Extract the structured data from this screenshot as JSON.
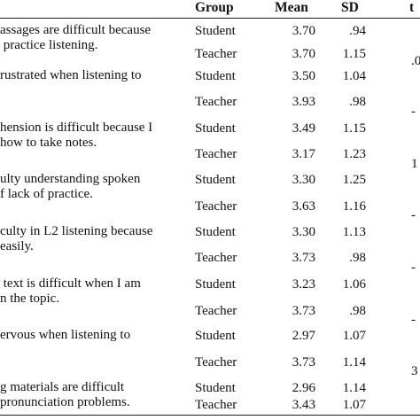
{
  "header": {
    "group": "Group",
    "mean": "Mean",
    "sd": "SD",
    "t": "t"
  },
  "rows": [
    {
      "item_lines": [
        "assages are difficult because",
        " practice listening."
      ],
      "student": {
        "group": "Student",
        "mean": "3.70",
        "sd": ".94"
      },
      "teacher": {
        "group": "Teacher",
        "mean": "3.70",
        "sd": "1.15"
      },
      "t": ".0"
    },
    {
      "item_lines": [
        "rustrated when listening to",
        ""
      ],
      "student": {
        "group": "Student",
        "mean": "3.50",
        "sd": "1.04"
      },
      "teacher": {
        "group": "Teacher",
        "mean": "3.93",
        "sd": ".98"
      },
      "t": "-"
    },
    {
      "item_lines": [
        "hension is difficult because I",
        "how to take notes."
      ],
      "student": {
        "group": "Student",
        "mean": "3.49",
        "sd": "1.15"
      },
      "teacher": {
        "group": "Teacher",
        "mean": "3.17",
        "sd": "1.23"
      },
      "t": "1"
    },
    {
      "item_lines": [
        "ulty understanding spoken",
        "f lack of practice."
      ],
      "student": {
        "group": "Student",
        "mean": "3.30",
        "sd": "1.25"
      },
      "teacher": {
        "group": "Teacher",
        "mean": "3.63",
        "sd": "1.16"
      },
      "t": "-"
    },
    {
      "item_lines": [
        "culty in L2 listening because",
        "easily."
      ],
      "student": {
        "group": "Student",
        "mean": "3.30",
        "sd": "1.13"
      },
      "teacher": {
        "group": "Teacher",
        "mean": "3.73",
        "sd": ".98"
      },
      "t": "-"
    },
    {
      "item_lines": [
        " text is difficult when I am",
        "n the topic."
      ],
      "student": {
        "group": "Student",
        "mean": "3.23",
        "sd": "1.06"
      },
      "teacher": {
        "group": "Teacher",
        "mean": "3.73",
        "sd": ".98"
      },
      "t": "-"
    },
    {
      "item_lines": [
        "ervous when listening to",
        ""
      ],
      "student": {
        "group": "Student",
        "mean": "2.97",
        "sd": "1.07"
      },
      "teacher": {
        "group": "Teacher",
        "mean": "3.73",
        "sd": "1.14"
      },
      "t": "3"
    },
    {
      "item_lines": [
        "g materials are difficult",
        "pronunciation problems."
      ],
      "student": {
        "group": "Student",
        "mean": "2.96",
        "sd": "1.14"
      },
      "teacher": {
        "group": "Teacher",
        "mean": "3.43",
        "sd": "1.07"
      },
      "t": ""
    }
  ]
}
